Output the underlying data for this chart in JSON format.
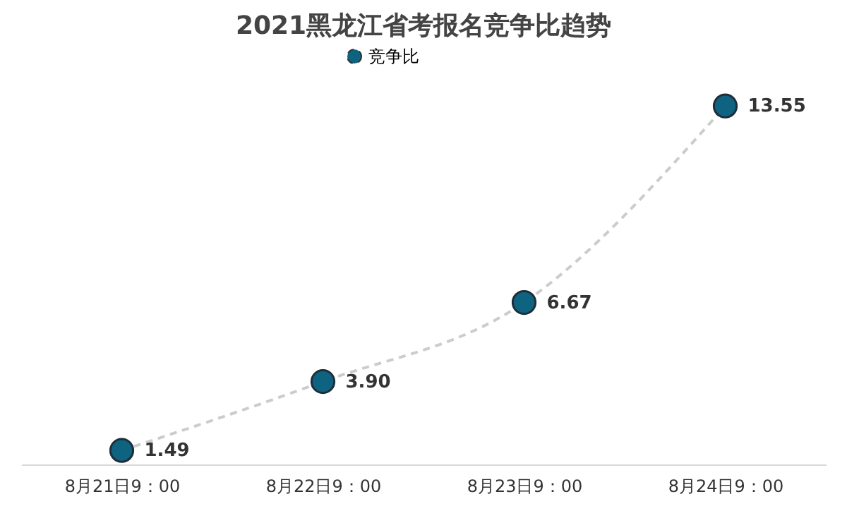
{
  "chart_data": {
    "type": "line",
    "title": "2021黑龙江省考报名竞争比趋势",
    "categories": [
      "8月21日9：00",
      "8月22日9：00",
      "8月23日9：00",
      "8月24日9：00"
    ],
    "series": [
      {
        "name": "竞争比",
        "color": "#0e6381",
        "values": [
          1.49,
          3.9,
          6.67,
          13.55
        ],
        "value_labels": [
          "1.49",
          "3.90",
          "6.67",
          "13.55"
        ]
      }
    ],
    "line_style": "dashed",
    "marker": "circle",
    "legend": "top",
    "grid": false
  }
}
